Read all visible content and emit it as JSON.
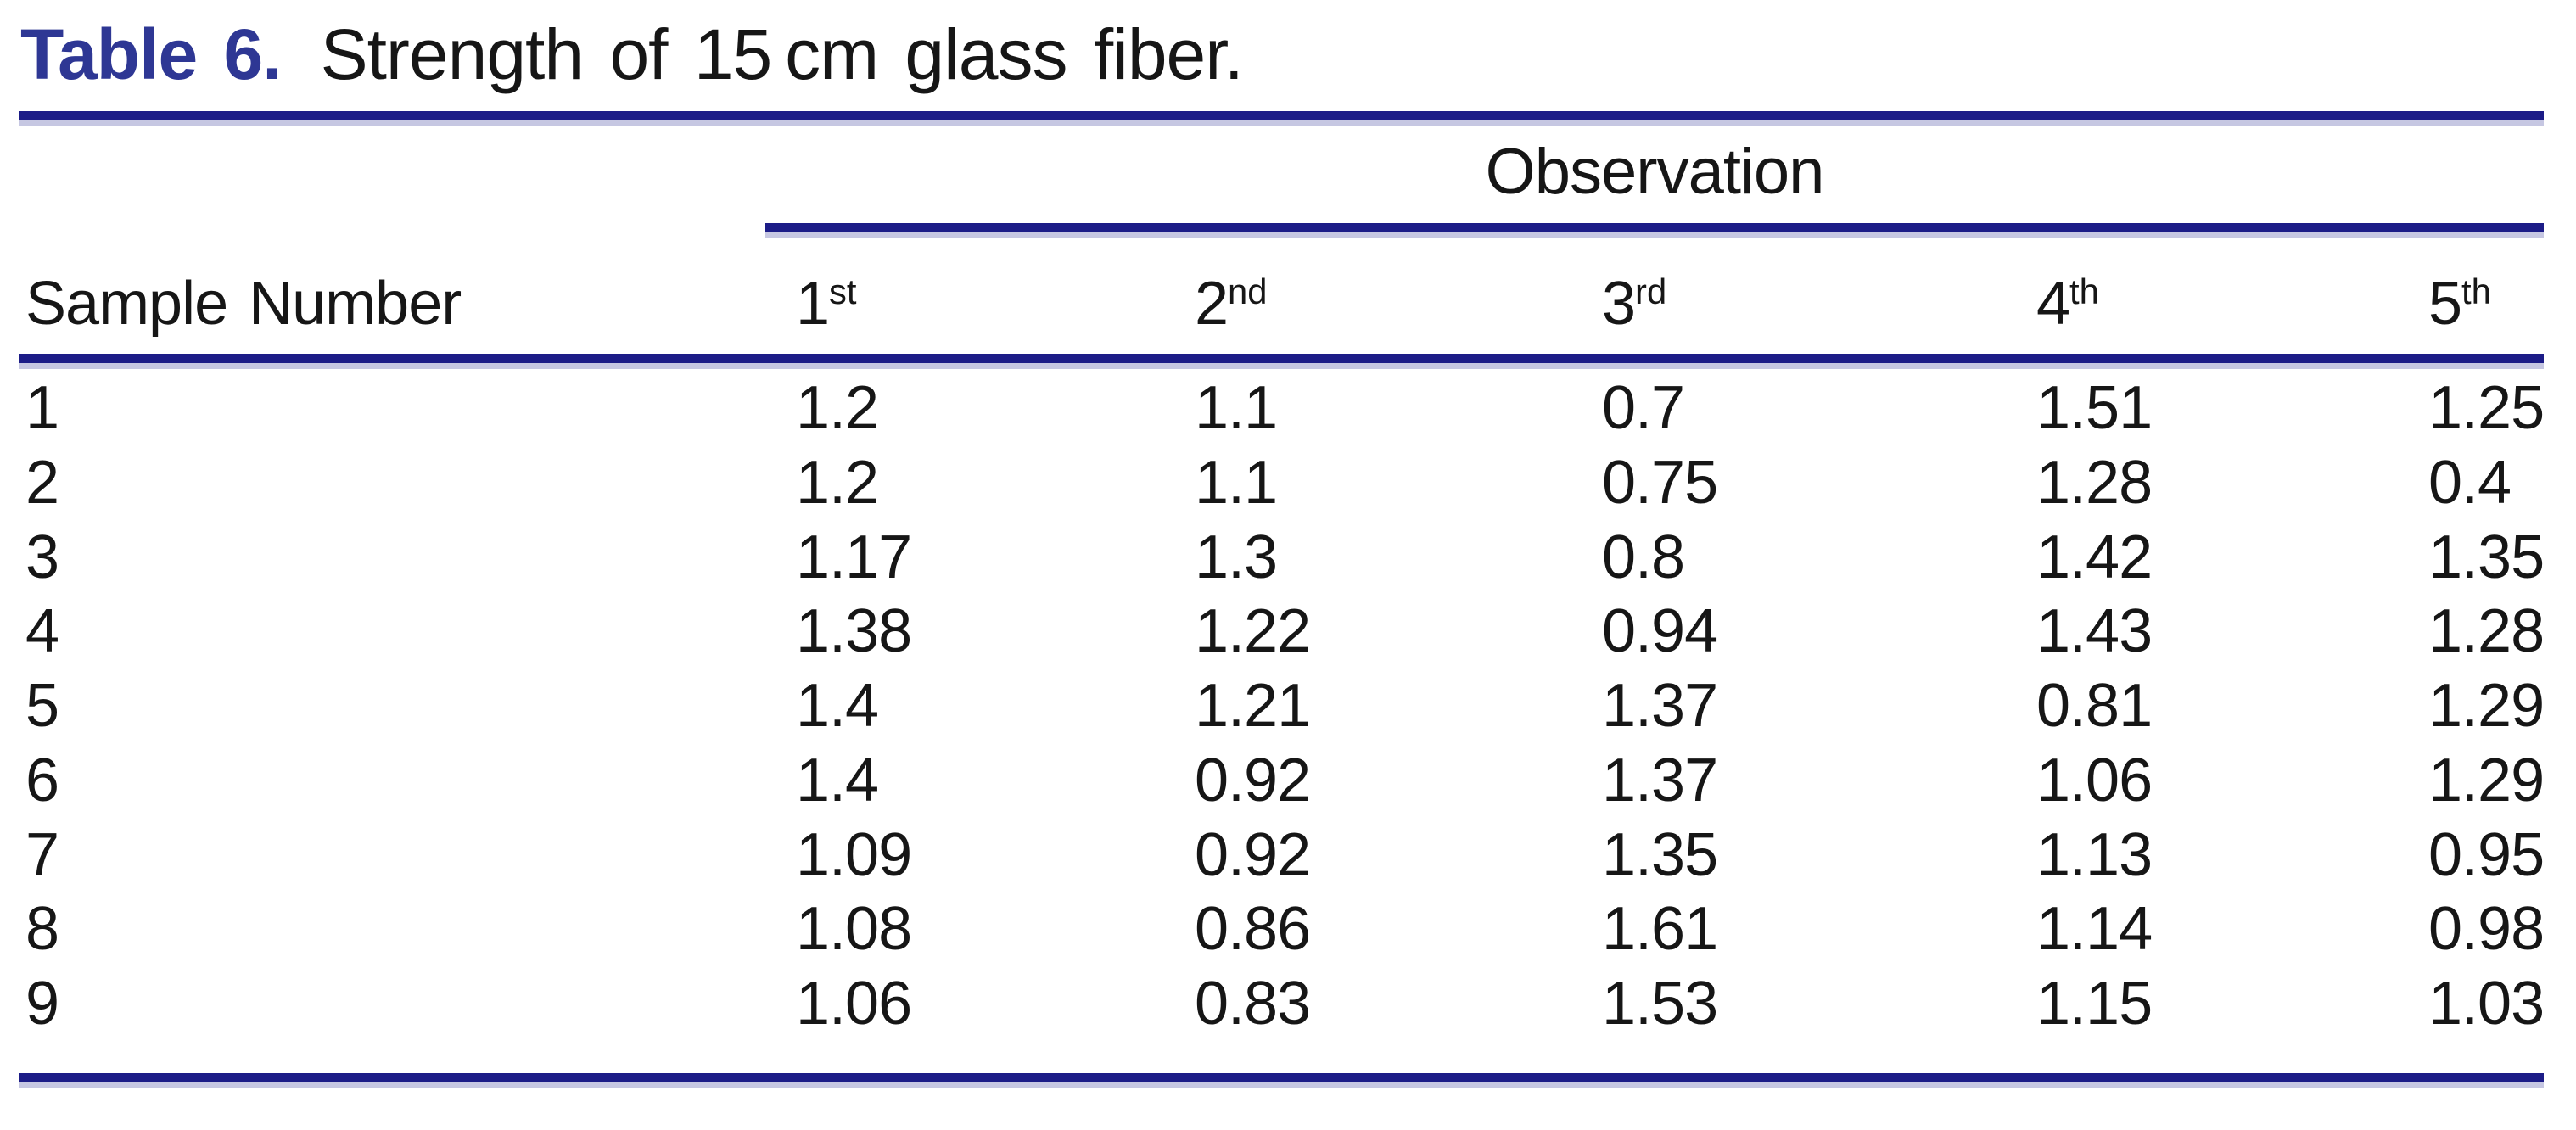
{
  "caption": {
    "label": "Table 6.",
    "text": "Strength of 15 cm glass fiber."
  },
  "table": {
    "group_header": "Observation",
    "row_header": "Sample Number",
    "columns": [
      {
        "num": "1",
        "suffix": "st"
      },
      {
        "num": "2",
        "suffix": "nd"
      },
      {
        "num": "3",
        "suffix": "rd"
      },
      {
        "num": "4",
        "suffix": "th"
      },
      {
        "num": "5",
        "suffix": "th"
      }
    ],
    "rows": [
      {
        "sample": "1",
        "values": [
          "1.2",
          "1.1",
          "0.7",
          "1.51",
          "1.25"
        ]
      },
      {
        "sample": "2",
        "values": [
          "1.2",
          "1.1",
          "0.75",
          "1.28",
          "0.4"
        ]
      },
      {
        "sample": "3",
        "values": [
          "1.17",
          "1.3",
          "0.8",
          "1.42",
          "1.35"
        ]
      },
      {
        "sample": "4",
        "values": [
          "1.38",
          "1.22",
          "0.94",
          "1.43",
          "1.28"
        ]
      },
      {
        "sample": "5",
        "values": [
          "1.4",
          "1.21",
          "1.37",
          "0.81",
          "1.29"
        ]
      },
      {
        "sample": "6",
        "values": [
          "1.4",
          "0.92",
          "1.37",
          "1.06",
          "1.29"
        ]
      },
      {
        "sample": "7",
        "values": [
          "1.09",
          "0.92",
          "1.35",
          "1.13",
          "0.95"
        ]
      },
      {
        "sample": "8",
        "values": [
          "1.08",
          "0.86",
          "1.61",
          "1.14",
          "0.98"
        ]
      },
      {
        "sample": "9",
        "values": [
          "1.06",
          "0.83",
          "1.53",
          "1.15",
          "1.03"
        ]
      }
    ]
  },
  "colors": {
    "rule_navy": "#1c1c87",
    "rule_shadow": "#c6c7e2",
    "caption_label_blue": "#2e3794",
    "text": "#161616",
    "background": "#ffffff"
  }
}
